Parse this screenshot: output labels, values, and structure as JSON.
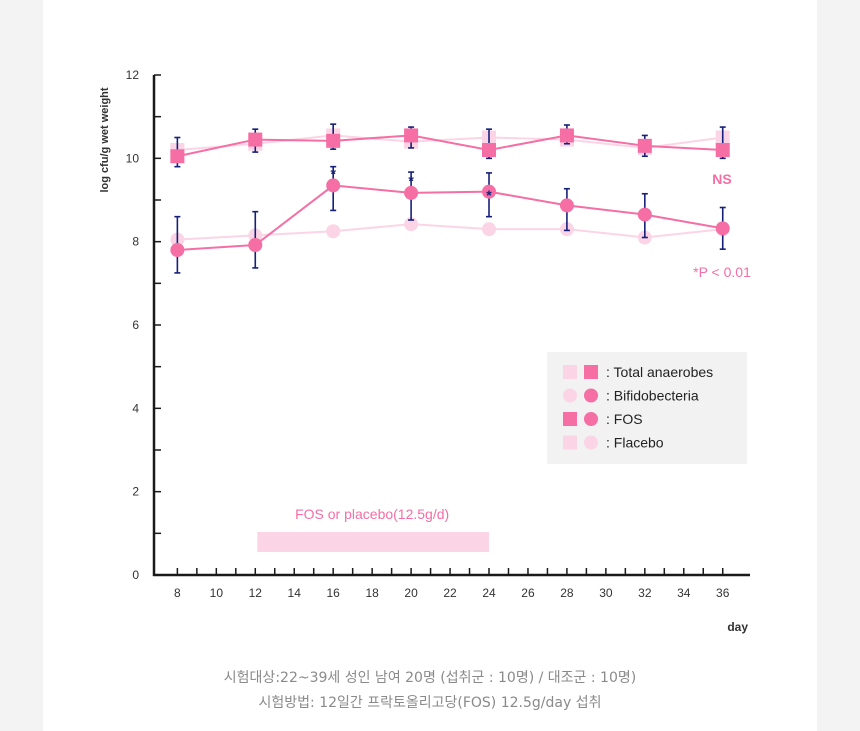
{
  "colors": {
    "fos": "#f56ea4",
    "placebo": "#fbd5e5",
    "error_bar": "#16207a",
    "axis": "#1a1a1a",
    "legend_bg": "#f2f2f2"
  },
  "chart_data": {
    "type": "line",
    "title": "",
    "xlabel": "day",
    "ylabel": "log cfu/g wet weight",
    "x_ticks": [
      8,
      10,
      12,
      14,
      16,
      18,
      20,
      22,
      24,
      26,
      28,
      30,
      32,
      34,
      36
    ],
    "x_range": [
      6.8,
      37.4
    ],
    "y_ticks": [
      0,
      2,
      4,
      6,
      8,
      10,
      12
    ],
    "ylim": [
      0,
      12
    ],
    "x": [
      8,
      12,
      16,
      20,
      24,
      28,
      32,
      36
    ],
    "series": [
      {
        "name": "Total anaerobes",
        "group": "Placebo",
        "marker": "square",
        "color": "#fbd5e5",
        "values": [
          10.2,
          10.35,
          10.55,
          10.4,
          10.5,
          10.45,
          10.25,
          10.5
        ]
      },
      {
        "name": "Bifidobecteria",
        "group": "Placebo",
        "marker": "circle",
        "color": "#fbd5e5",
        "values": [
          8.05,
          8.15,
          8.25,
          8.42,
          8.3,
          8.3,
          8.1,
          8.3
        ]
      },
      {
        "name": "Total anaerobes",
        "group": "FOS",
        "marker": "square",
        "color": "#f56ea4",
        "values": [
          10.05,
          10.45,
          10.42,
          10.55,
          10.2,
          10.55,
          10.3,
          10.2
        ],
        "error_low": [
          0.25,
          0.3,
          0.2,
          0.3,
          0.2,
          0.2,
          0.25,
          0.2
        ],
        "error_high": [
          0.45,
          0.25,
          0.4,
          0.2,
          0.5,
          0.25,
          0.25,
          0.55
        ]
      },
      {
        "name": "Bifidobecteria",
        "group": "FOS",
        "marker": "circle",
        "color": "#f56ea4",
        "values": [
          7.8,
          7.92,
          9.35,
          9.17,
          9.2,
          8.87,
          8.65,
          8.32
        ],
        "error_low": [
          0.55,
          0.55,
          0.6,
          0.65,
          0.6,
          0.6,
          0.55,
          0.5
        ],
        "error_high": [
          0.8,
          0.8,
          0.45,
          0.5,
          0.45,
          0.4,
          0.5,
          0.5
        ]
      }
    ],
    "significance": [
      {
        "x": 16,
        "y": 9.57,
        "label": "*"
      },
      {
        "x": 20,
        "y": 9.4,
        "label": "*"
      },
      {
        "x": 24,
        "y": 9.05,
        "label": "*"
      }
    ],
    "annotations": {
      "ns": "NS",
      "p_value": "*P < 0.01"
    },
    "treatment": {
      "label": "FOS or placebo(12.5g/d)",
      "start": 12,
      "end": 24
    },
    "legend": {
      "placement": "right",
      "entries": [
        {
          "label": ": Total anaerobes",
          "marks": [
            "placebo-square",
            "fos-square"
          ]
        },
        {
          "label": ": Bifidobecteria",
          "marks": [
            "placebo-circle",
            "fos-circle"
          ]
        },
        {
          "label": ": FOS",
          "marks": [
            "fos-square",
            "fos-circle"
          ]
        },
        {
          "label": ": Flacebo",
          "marks": [
            "placebo-square",
            "placebo-circle"
          ]
        }
      ]
    }
  },
  "caption": {
    "line1": "시험대상:22~39세 성인 남여 20명 (섭취군 : 10명) / 대조군 : 10명)",
    "line2": "시험방법: 12일간 프락토올리고당(FOS) 12.5g/day 섭취"
  }
}
